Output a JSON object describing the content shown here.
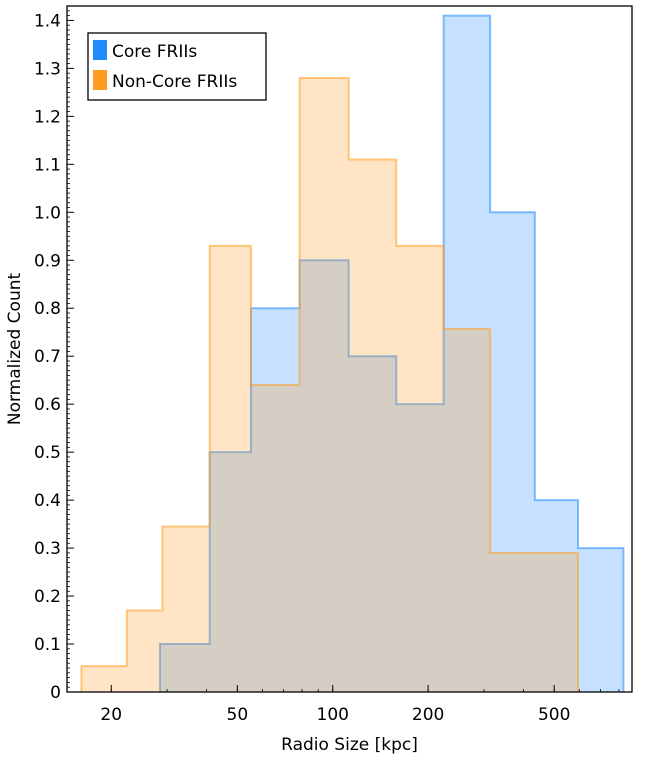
{
  "chart_data": {
    "type": "histogram",
    "xlabel": "Radio Size [kpc]",
    "ylabel": "Normalized Count",
    "xscale": "log",
    "xlim": [
      14.5,
      880
    ],
    "ylim": [
      0,
      1.43
    ],
    "grid": false,
    "legend_position": "top-left",
    "x_ticks": [
      20,
      50,
      100,
      200,
      500
    ],
    "y_ticks": [
      0,
      0.1,
      0.2,
      0.3,
      0.4,
      0.5,
      0.6,
      0.7,
      0.8,
      0.9,
      1.0,
      1.1,
      1.2,
      1.3,
      1.4
    ],
    "series": [
      {
        "name": "Core FRIIs",
        "color": "#1f8bff",
        "bin_edges": [
          28.5,
          40.9,
          55.2,
          78.6,
          112.3,
          158.7,
          223.9,
          313.8,
          434.4,
          594.4,
          826.9
        ],
        "values": [
          0.1,
          0.5,
          0.8,
          0.9,
          0.7,
          0.6,
          1.41,
          1.0,
          0.4,
          0.3
        ]
      },
      {
        "name": "Non-Core FRIIs",
        "color": "#ff9c1f",
        "bin_edges": [
          16.1,
          22.4,
          29.0,
          40.9,
          55.2,
          78.6,
          112.3,
          158.7,
          223.9,
          313.8,
          432.9,
          594.4
        ],
        "values": [
          0.054,
          0.17,
          0.345,
          0.93,
          0.64,
          1.28,
          1.11,
          0.93,
          0.757,
          0.29,
          0.29
        ]
      }
    ]
  }
}
